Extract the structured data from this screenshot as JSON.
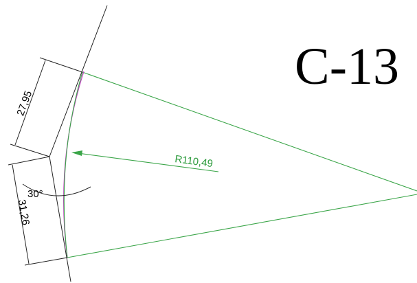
{
  "title": "C-13",
  "dimensions": {
    "upper": "27,95",
    "lower": "31,26",
    "radius": "R110,49",
    "angle": "30°"
  }
}
